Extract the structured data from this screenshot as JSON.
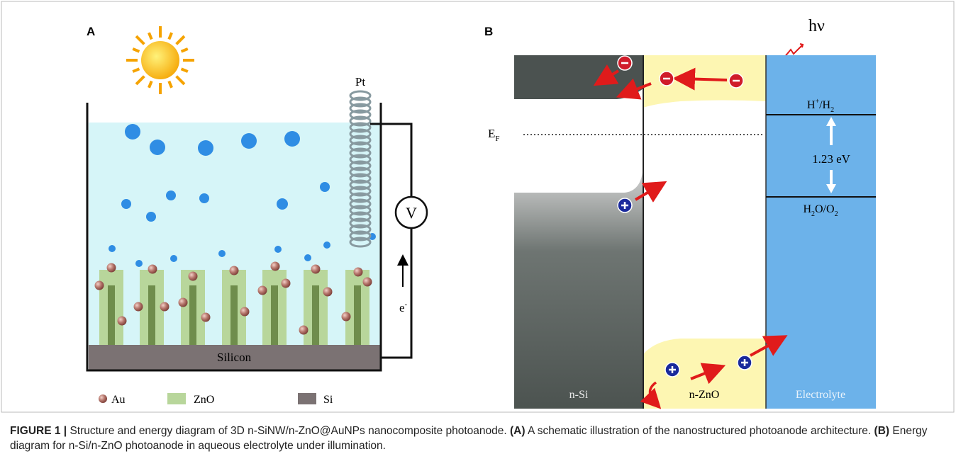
{
  "panel_a": {
    "label": "A",
    "electrode": "Pt",
    "meter": "V",
    "electron": [
      "e",
      "-"
    ],
    "substrate": "Silicon",
    "legend": [
      "Au",
      "ZnO",
      "Si"
    ]
  },
  "panel_b": {
    "label": "B",
    "photon": "hν",
    "fermi": [
      "E",
      "F"
    ],
    "h_level": [
      "H",
      "+",
      "/H",
      "2"
    ],
    "gap": "1.23 eV",
    "o_level": [
      "H",
      "2",
      "O/O",
      "2"
    ],
    "regions": [
      "n-Si",
      "n-ZnO",
      "Electrolyte"
    ]
  },
  "caption": {
    "figure": "FIGURE 1 |",
    "text": "Structure and energy diagram of 3D n-SiNW/n-ZnO@AuNPs nanocomposite photoanode.",
    "a_tag": "(A)",
    "a_text": "A schematic illustration of the nanostructured photoanode architecture.",
    "b_tag": "(B)",
    "b_text": "Energy diagram for n-Si/n-ZnO photoanode in aqueous electrolyte under illumination."
  }
}
